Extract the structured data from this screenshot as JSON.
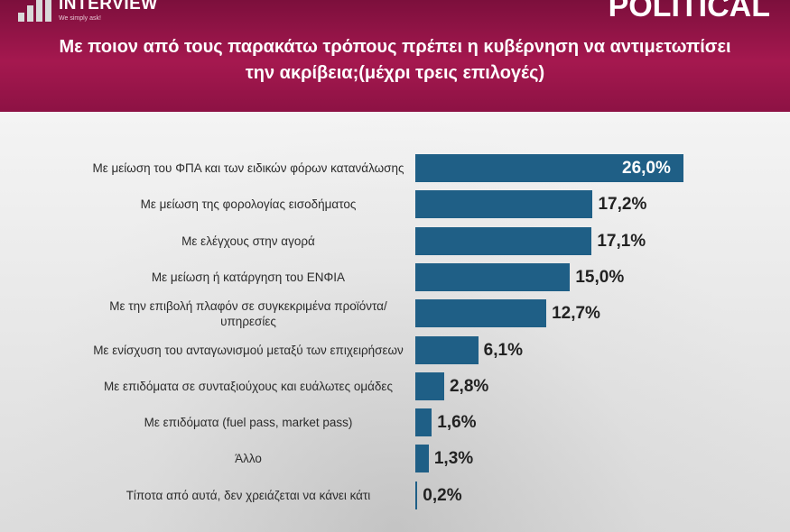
{
  "header": {
    "brand_left": "INTERVIEW",
    "brand_left_tagline": "We simply ask!",
    "brand_right": "POLITICAL",
    "accent_color": "#a5184f"
  },
  "chart_data": {
    "type": "bar",
    "orientation": "horizontal",
    "title": "Με ποιον από τους παρακάτω τρόπους πρέπει η κυβέρνηση να αντιμετωπίσει την ακρίβεια;(μέχρι τρεις επιλογές)",
    "categories": [
      "Με μείωση του ΦΠΑ και των ειδικών φόρων κατανάλωσης",
      "Με μείωση της φορολογίας εισοδήματος",
      "Με ελέγχους στην αγορά",
      "Με μείωση ή κατάργηση του ΕΝΦΙΑ",
      "Με την επιβολή πλαφόν σε συγκεκριμένα προϊόντα/υπηρεσίες",
      "Με ενίσχυση του ανταγωνισμού μεταξύ των επιχειρήσεων",
      "Με επιδόματα σε συνταξιούχους και ευάλωτες ομάδες",
      "Με επιδόματα (fuel pass, market pass)",
      "Άλλο",
      "Τίποτα από αυτά, δεν χρειάζεται να κάνει κάτι"
    ],
    "values": [
      26.0,
      17.2,
      17.1,
      15.0,
      12.7,
      6.1,
      2.8,
      1.6,
      1.3,
      0.2
    ],
    "value_labels": [
      "26,0%",
      "17,2%",
      "17,1%",
      "15,0%",
      "12,7%",
      "6,1%",
      "2,8%",
      "1,6%",
      "1,3%",
      "0,2%"
    ],
    "unit": "%",
    "bar_color": "#1f5f86",
    "grid": false,
    "legend": "none"
  }
}
